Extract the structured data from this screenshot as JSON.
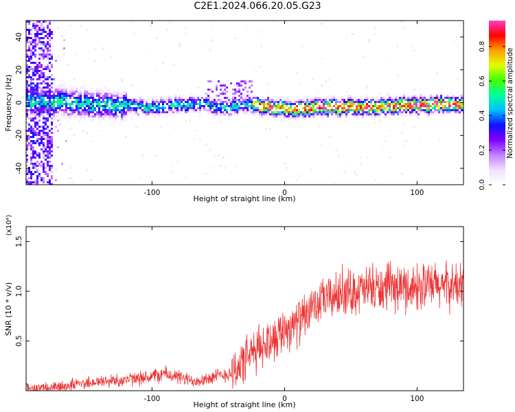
{
  "title": "C2E1.2024.066.20.05.G23",
  "chart_data": [
    {
      "type": "heatmap",
      "name": "spectrogram",
      "xlabel": "Height of straight line (km)",
      "ylabel": "Frequency (Hz)",
      "xlim": [
        -195,
        135
      ],
      "ylim": [
        -50,
        50
      ],
      "xticks": [
        -100,
        0,
        100
      ],
      "yticks": [
        -40,
        -20,
        0,
        20,
        40
      ],
      "xtick_labels": [
        "-100",
        "0",
        "100"
      ],
      "ytick_labels": [
        "-40",
        "-20",
        "0",
        "20",
        "40"
      ],
      "colorbar": {
        "label": "Normalized spectral amplitude",
        "range": [
          0,
          0.95
        ],
        "ticks": [
          0.0,
          0.2,
          0.4,
          0.6,
          0.8
        ],
        "tick_labels": [
          "0.0",
          "0.2",
          "0.4",
          "0.6",
          "0.8"
        ],
        "colormap": [
          "#ffffff",
          "#f0e0ff",
          "#c080ff",
          "#8000ff",
          "#1010ff",
          "#00c0ff",
          "#00ffa0",
          "#40ff00",
          "#e0ff00",
          "#ffa000",
          "#ff0000",
          "#ff40c0"
        ]
      },
      "ridge_frequency_hz": {
        "x": [
          -185,
          -150,
          -100,
          -60,
          -45,
          -30,
          0,
          50,
          100,
          135
        ],
        "y": [
          1,
          0,
          -2,
          0,
          -3,
          0,
          -3,
          -2,
          -1,
          0
        ]
      }
    },
    {
      "type": "line",
      "name": "snr",
      "xlabel": "Height of straight line (km)",
      "ylabel": "SNR (10 * v/v)",
      "y_multiplier_label": "(x10⁴)",
      "xlim": [
        -195,
        135
      ],
      "ylim": [
        0,
        1.65
      ],
      "xticks": [
        -100,
        0,
        100
      ],
      "yticks": [
        0.5,
        1.0,
        1.5
      ],
      "xtick_labels": [
        "-100",
        "0",
        "100"
      ],
      "ytick_labels": [
        "0.5",
        "1.0",
        "1.5"
      ],
      "color": "#ee3333",
      "trend": {
        "x": [
          -195,
          -175,
          -150,
          -110,
          -90,
          -70,
          -55,
          -40,
          -30,
          -20,
          -10,
          0,
          10,
          20,
          30,
          50,
          80,
          110,
          135
        ],
        "y": [
          0.02,
          0.03,
          0.08,
          0.12,
          0.17,
          0.1,
          0.13,
          0.18,
          0.3,
          0.42,
          0.52,
          0.62,
          0.68,
          0.8,
          0.92,
          1.0,
          1.03,
          1.05,
          1.05
        ]
      }
    }
  ]
}
